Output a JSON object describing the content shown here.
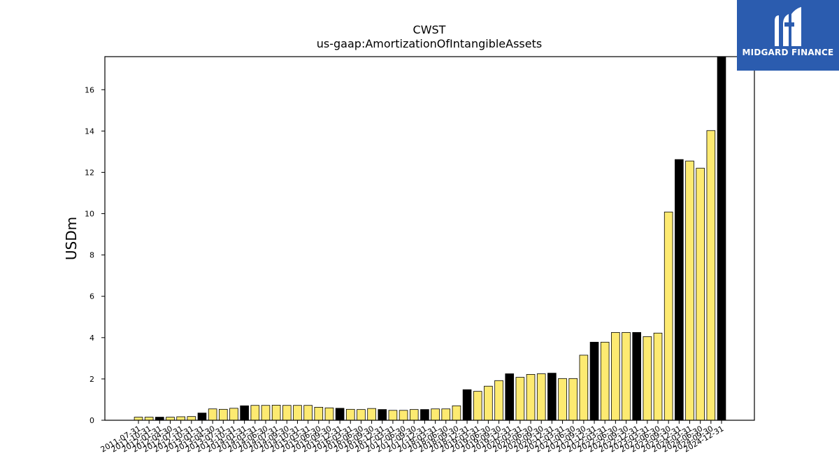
{
  "brand": {
    "name": "MIDGARD FINANCE",
    "background": "#2b5caf"
  },
  "colors": {
    "bar_fill": "#fdea71",
    "bar_highlight": "#000000",
    "bar_edge": "#000000"
  },
  "chart_data": {
    "type": "bar",
    "title": "CWST",
    "subtitle": "us-gaap:AmortizationOfIntangibleAssets",
    "ylabel": "USDm",
    "xlabel": "",
    "ylim": [
      0,
      17.6
    ],
    "yticks": [
      0,
      2,
      4,
      6,
      8,
      10,
      12,
      14,
      16
    ],
    "grid": false,
    "categories": [
      "2011-07-31",
      "2011-10-31",
      "2012-01-31",
      "2012-04-30",
      "2012-07-31",
      "2012-10-31",
      "2013-01-31",
      "2013-04-30",
      "2013-07-31",
      "2013-10-31",
      "2014-01-31",
      "2014-03-31",
      "2014-06-30",
      "2014-07-31",
      "2014-09-30",
      "2014-10-31",
      "2015-03-31",
      "2015-06-30",
      "2015-09-30",
      "2015-12-31",
      "2016-03-31",
      "2016-06-30",
      "2016-09-30",
      "2016-12-31",
      "2017-03-31",
      "2017-06-30",
      "2017-09-30",
      "2017-12-31",
      "2018-03-31",
      "2018-06-30",
      "2018-09-30",
      "2018-12-31",
      "2019-03-31",
      "2019-06-30",
      "2019-09-30",
      "2019-12-31",
      "2020-03-31",
      "2020-06-30",
      "2020-09-30",
      "2020-12-31",
      "2021-03-31",
      "2021-06-30",
      "2021-09-30",
      "2021-12-31",
      "2022-03-31",
      "2022-06-30",
      "2022-09-30",
      "2022-12-31",
      "2023-03-31",
      "2023-06-30",
      "2023-09-30",
      "2023-12-31",
      "2024-03-31",
      "2024-06-30",
      "2024-09-30",
      "2024-12-31"
    ],
    "values": [
      0.15,
      0.15,
      0.15,
      0.15,
      0.17,
      0.18,
      0.35,
      0.55,
      0.53,
      0.58,
      0.7,
      0.72,
      0.72,
      0.73,
      0.72,
      0.72,
      0.72,
      0.63,
      0.6,
      0.58,
      0.53,
      0.52,
      0.57,
      0.52,
      0.48,
      0.48,
      0.52,
      0.52,
      0.55,
      0.55,
      0.7,
      1.48,
      1.4,
      1.65,
      1.92,
      2.25,
      2.08,
      2.22,
      2.25,
      2.28,
      2.02,
      2.02,
      3.15,
      3.78,
      3.78,
      4.25,
      4.25,
      4.25,
      4.05,
      4.22,
      10.08,
      12.62,
      12.55,
      12.2,
      14.02,
      17.6
    ],
    "highlight": [
      false,
      false,
      true,
      false,
      false,
      false,
      true,
      false,
      false,
      false,
      true,
      false,
      false,
      false,
      false,
      false,
      false,
      false,
      false,
      true,
      false,
      false,
      false,
      true,
      false,
      false,
      false,
      true,
      false,
      false,
      false,
      true,
      false,
      false,
      false,
      true,
      false,
      false,
      false,
      true,
      false,
      false,
      false,
      true,
      false,
      false,
      false,
      true,
      false,
      false,
      false,
      true,
      false,
      false,
      false,
      true
    ]
  }
}
